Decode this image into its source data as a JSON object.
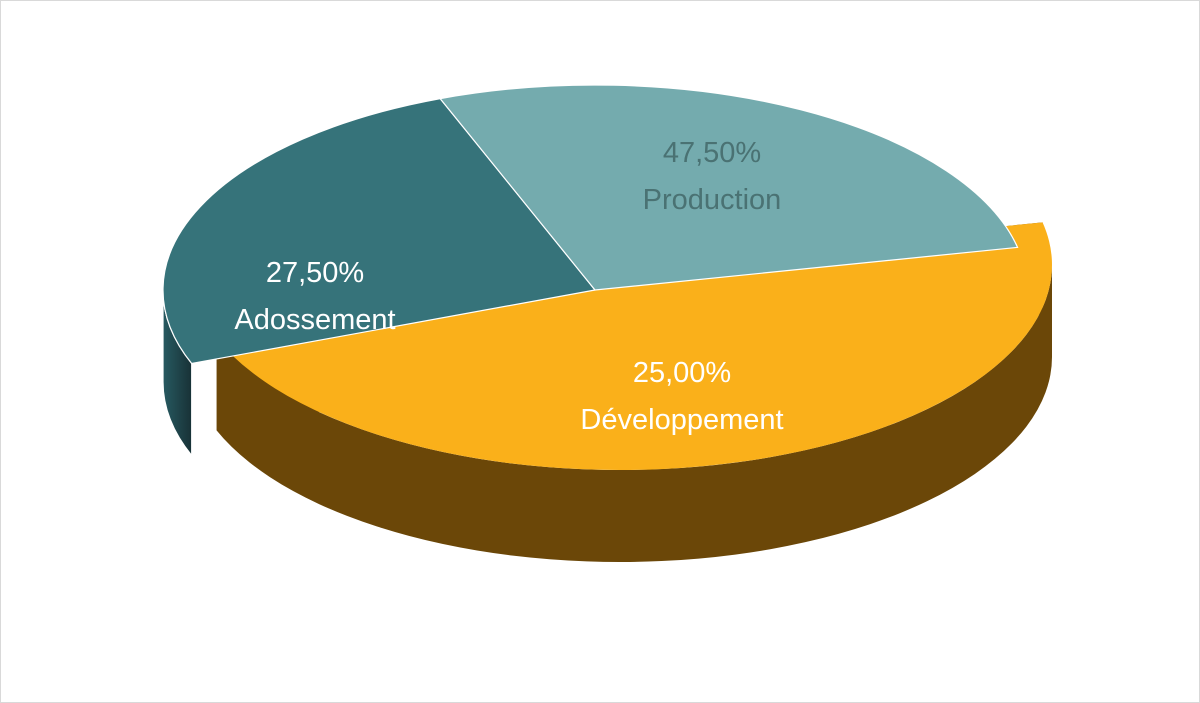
{
  "chart_data": {
    "type": "pie",
    "style": "3d-exploded",
    "title": "",
    "slices": [
      {
        "label": "Production",
        "value": 47.5,
        "value_text": "47,50%",
        "color": "#FAB01A",
        "side_color": "#6B4708",
        "label_color": "#4A7273",
        "exploded": true
      },
      {
        "label": "Développement",
        "value": 25.0,
        "value_text": "25,00%",
        "color": "#36737A",
        "side_color": "#1F4A50",
        "label_color": "#FFFFFF",
        "exploded": false
      },
      {
        "label": "Adossement",
        "value": 27.5,
        "value_text": "27,50%",
        "color": "#74ABAE",
        "side_color": "#5B8E92",
        "label_color": "#FFFFFF",
        "exploded": false
      }
    ]
  }
}
